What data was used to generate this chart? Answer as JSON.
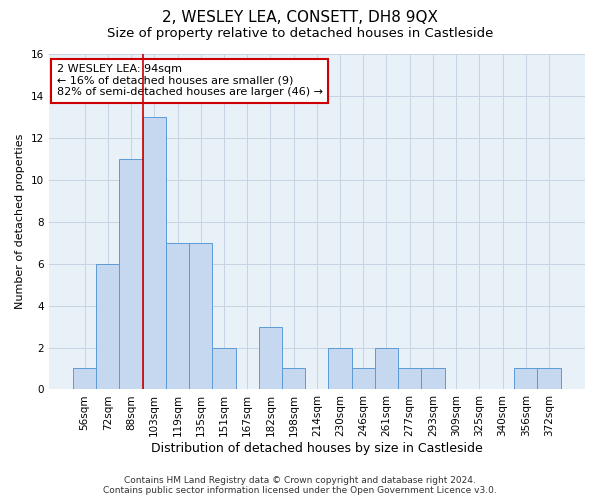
{
  "title": "2, WESLEY LEA, CONSETT, DH8 9QX",
  "subtitle": "Size of property relative to detached houses in Castleside",
  "xlabel": "Distribution of detached houses by size in Castleside",
  "ylabel": "Number of detached properties",
  "categories": [
    "56sqm",
    "72sqm",
    "88sqm",
    "103sqm",
    "119sqm",
    "135sqm",
    "151sqm",
    "167sqm",
    "182sqm",
    "198sqm",
    "214sqm",
    "230sqm",
    "246sqm",
    "261sqm",
    "277sqm",
    "293sqm",
    "309sqm",
    "325sqm",
    "340sqm",
    "356sqm",
    "372sqm"
  ],
  "values": [
    1,
    6,
    11,
    13,
    7,
    7,
    2,
    0,
    3,
    1,
    0,
    2,
    1,
    2,
    1,
    1,
    0,
    0,
    0,
    1,
    1
  ],
  "bar_color": "#c5d8f0",
  "bar_edge_color": "#5b9bd5",
  "grid_color": "#c8d4e3",
  "background_color": "#e8f0f8",
  "vline_x_index": 2,
  "vline_color": "#cc0000",
  "annotation_text": "2 WESLEY LEA: 94sqm\n← 16% of detached houses are smaller (9)\n82% of semi-detached houses are larger (46) →",
  "annotation_box_color": "#ffffff",
  "annotation_border_color": "#cc0000",
  "ylim": [
    0,
    16
  ],
  "yticks": [
    0,
    2,
    4,
    6,
    8,
    10,
    12,
    14,
    16
  ],
  "footer_line1": "Contains HM Land Registry data © Crown copyright and database right 2024.",
  "footer_line2": "Contains public sector information licensed under the Open Government Licence v3.0.",
  "title_fontsize": 11,
  "subtitle_fontsize": 9.5,
  "xlabel_fontsize": 9,
  "ylabel_fontsize": 8,
  "tick_fontsize": 7.5,
  "annotation_fontsize": 8,
  "footer_fontsize": 6.5
}
